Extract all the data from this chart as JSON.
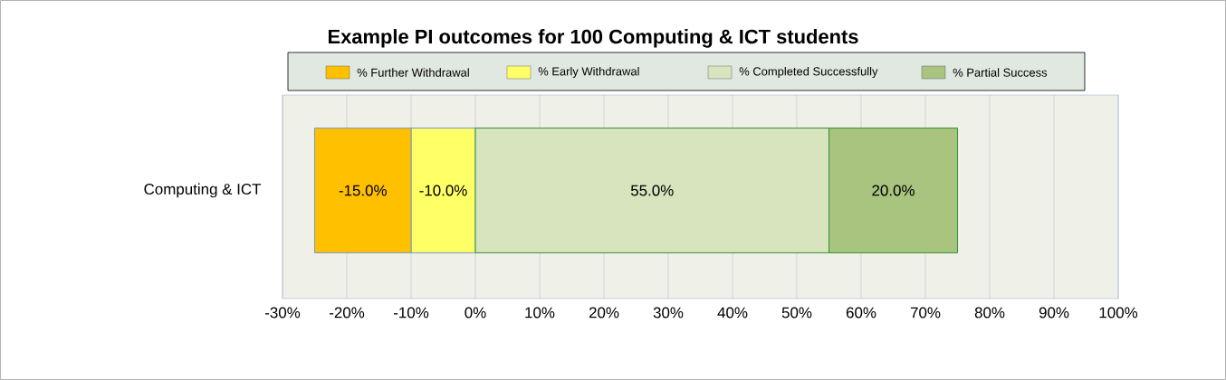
{
  "chart_data": {
    "type": "bar",
    "orientation": "horizontal",
    "stacked": true,
    "title": "Example PI outcomes for 100 Computing & ICT students",
    "categories": [
      "Computing & ICT"
    ],
    "series": [
      {
        "name": "% Early Withdrawal",
        "color": "#ffff66",
        "values": [
          -10
        ],
        "value_labels": [
          "-10.0%"
        ]
      },
      {
        "name": "% Further Withdrawal",
        "color": "#ffc000",
        "values": [
          -15
        ],
        "value_labels": [
          "-15.0%"
        ]
      },
      {
        "name": "% Completed Successfully",
        "color": "#d7e4bd",
        "values": [
          55
        ],
        "value_labels": [
          "55.0%"
        ]
      },
      {
        "name": "% Partial Success",
        "color": "#a9c47f",
        "values": [
          20
        ],
        "value_labels": [
          "20.0%"
        ]
      }
    ],
    "xlim": [
      -30,
      100
    ],
    "xticks": [
      {
        "value": -30,
        "label": "-30%"
      },
      {
        "value": -20,
        "label": "-20%"
      },
      {
        "value": -10,
        "label": "-10%"
      },
      {
        "value": 0,
        "label": "0%"
      },
      {
        "value": 10,
        "label": "10%"
      },
      {
        "value": 20,
        "label": "20%"
      },
      {
        "value": 30,
        "label": "30%"
      },
      {
        "value": 40,
        "label": "40%"
      },
      {
        "value": 50,
        "label": "50%"
      },
      {
        "value": 60,
        "label": "60%"
      },
      {
        "value": 70,
        "label": "70%"
      },
      {
        "value": 80,
        "label": "80%"
      },
      {
        "value": 90,
        "label": "90%"
      },
      {
        "value": 100,
        "label": "100%"
      }
    ],
    "grid": "x",
    "legend": "top"
  }
}
